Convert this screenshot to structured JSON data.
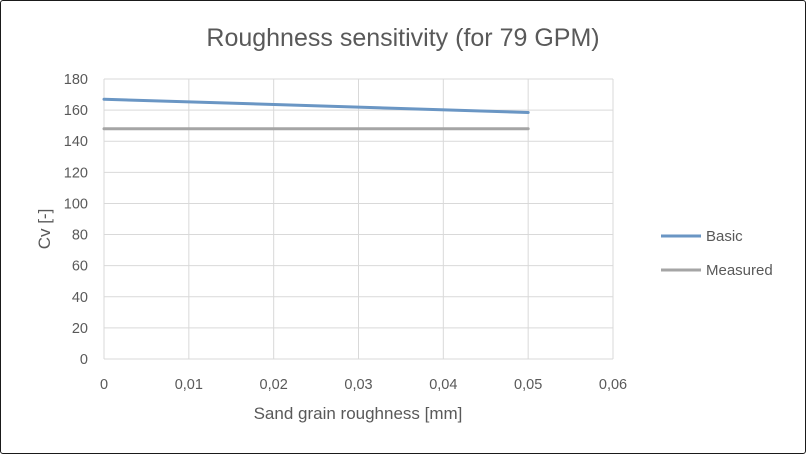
{
  "chart_data": {
    "type": "line",
    "title": "Roughness sensitivity (for 79 GPM)",
    "xlabel": "Sand grain roughness [mm]",
    "ylabel": "Cv [-]",
    "xlim": [
      0,
      0.06
    ],
    "ylim": [
      0,
      180
    ],
    "x_ticks": [
      "0",
      "0,01",
      "0,02",
      "0,03",
      "0,04",
      "0,05",
      "0,06"
    ],
    "y_ticks": [
      "0",
      "20",
      "40",
      "60",
      "80",
      "100",
      "120",
      "140",
      "160",
      "180"
    ],
    "grid": "both",
    "legend_position": "right",
    "series": [
      {
        "name": "Basic",
        "color": "#6a96c4",
        "x": [
          0,
          0.05
        ],
        "y": [
          167,
          158.5
        ]
      },
      {
        "name": "Measured",
        "color": "#a5a5a5",
        "x": [
          0,
          0.05
        ],
        "y": [
          148,
          148
        ]
      }
    ]
  }
}
